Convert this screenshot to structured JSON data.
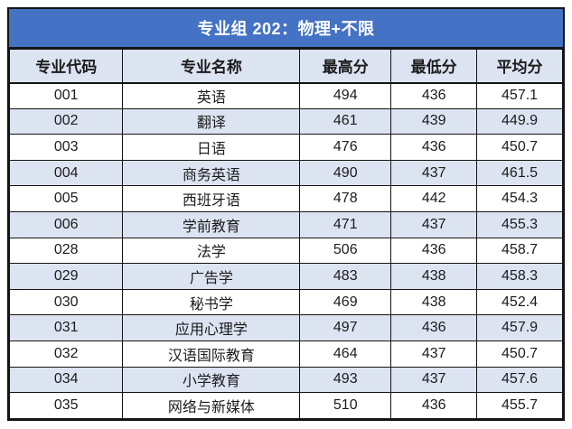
{
  "table": {
    "title": "专业组 202：物理+不限",
    "title_bg": "#4472c4",
    "title_color": "#ffffff",
    "stripe_color": "#dce3f1",
    "border_color": "#141414",
    "columns": [
      "专业代码",
      "专业名称",
      "最高分",
      "最低分",
      "平均分"
    ],
    "rows": [
      [
        "001",
        "英语",
        "494",
        "436",
        "457.1"
      ],
      [
        "002",
        "翻译",
        "461",
        "439",
        "449.9"
      ],
      [
        "003",
        "日语",
        "476",
        "436",
        "450.7"
      ],
      [
        "004",
        "商务英语",
        "490",
        "437",
        "461.5"
      ],
      [
        "005",
        "西班牙语",
        "478",
        "442",
        "454.3"
      ],
      [
        "006",
        "学前教育",
        "471",
        "437",
        "455.3"
      ],
      [
        "028",
        "法学",
        "506",
        "436",
        "458.7"
      ],
      [
        "029",
        "广告学",
        "483",
        "438",
        "458.3"
      ],
      [
        "030",
        "秘书学",
        "469",
        "438",
        "452.4"
      ],
      [
        "031",
        "应用心理学",
        "497",
        "436",
        "457.9"
      ],
      [
        "032",
        "汉语国际教育",
        "464",
        "437",
        "450.7"
      ],
      [
        "034",
        "小学教育",
        "493",
        "437",
        "457.6"
      ],
      [
        "035",
        "网络与新媒体",
        "510",
        "436",
        "455.7"
      ]
    ]
  }
}
